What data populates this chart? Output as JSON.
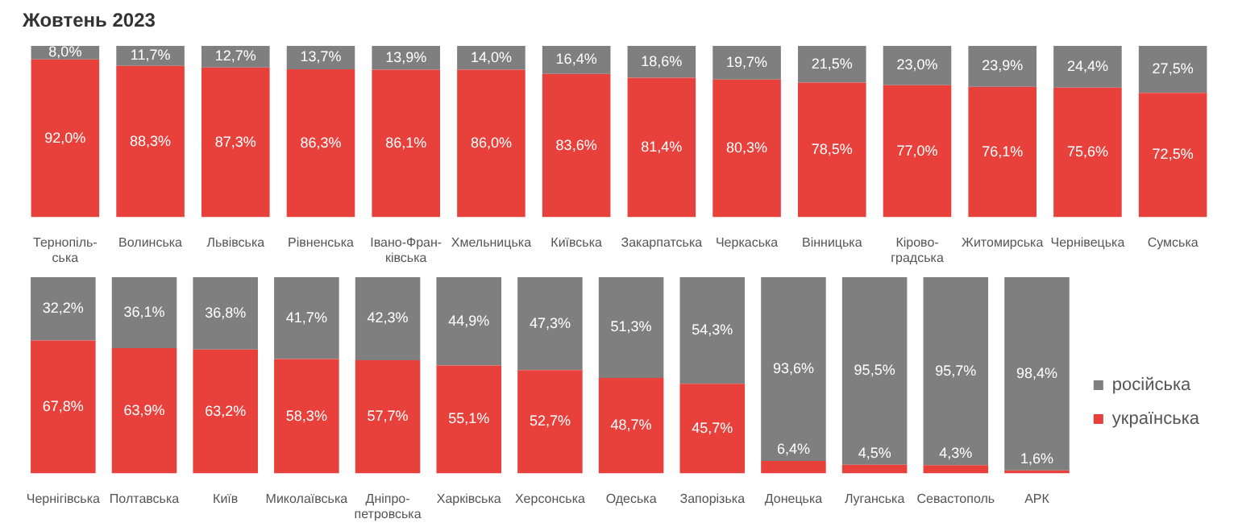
{
  "chart_data": [
    {
      "type": "bar",
      "stacked": true,
      "title": "Жовтень 2023",
      "grid": false,
      "legend": false,
      "categories": [
        "Тернопіль-\nська",
        "Волинська",
        "Львівська",
        "Рівненська",
        "Івано-Фран-\nківська",
        "Хмельницька",
        "Київська",
        "Закарпатська",
        "Черкаська",
        "Вінницька",
        "Кірово-\nградська",
        "Житомирська",
        "Чернівецька",
        "Сумська"
      ],
      "series": [
        {
          "color": "#e8413c",
          "values": [
            92.0,
            88.3,
            87.3,
            86.3,
            86.1,
            86.0,
            83.6,
            81.4,
            80.3,
            78.5,
            77.0,
            76.1,
            75.6,
            72.5
          ],
          "value_labels": [
            "92,0%",
            "88,3%",
            "87,3%",
            "86,3%",
            "86,1%",
            "86,0%",
            "83,6%",
            "81,4%",
            "80,3%",
            "78,5%",
            "77,0%",
            "76,1%",
            "75,6%",
            "72,5%"
          ]
        },
        {
          "color": "#7f7f7f",
          "values": [
            8.0,
            11.7,
            12.7,
            13.7,
            13.9,
            14.0,
            16.4,
            18.6,
            19.7,
            21.5,
            23.0,
            23.9,
            24.4,
            27.5
          ],
          "value_labels": [
            "8,0%",
            "11,7%",
            "12,7%",
            "13,7%",
            "13,9%",
            "14,0%",
            "16,4%",
            "18,6%",
            "19,7%",
            "21,5%",
            "23,0%",
            "23,9%",
            "24,4%",
            "27,5%"
          ]
        }
      ]
    },
    {
      "type": "bar",
      "stacked": true,
      "grid": false,
      "legend": "right",
      "categories": [
        "Чернігівська",
        "Полтавська",
        "Київ",
        "Миколаївська",
        "Дніпро-\nпетровська",
        "Харківська",
        "Херсонська",
        "Одеська",
        "Запорізька",
        "Донецька",
        "Луганська",
        "Севастополь",
        "АРК"
      ],
      "series": [
        {
          "name": "українська",
          "color": "#e8413c",
          "values": [
            67.8,
            63.9,
            63.2,
            58.3,
            57.7,
            55.1,
            52.7,
            48.7,
            45.7,
            6.4,
            4.5,
            4.3,
            1.6
          ],
          "value_labels": [
            "67,8%",
            "63,9%",
            "63,2%",
            "58,3%",
            "57,7%",
            "55,1%",
            "52,7%",
            "48,7%",
            "45,7%",
            "6,4%",
            "4,5%",
            "4,3%",
            "1,6%"
          ]
        },
        {
          "name": "російська",
          "color": "#7f7f7f",
          "values": [
            32.2,
            36.1,
            36.8,
            41.7,
            42.3,
            44.9,
            47.3,
            51.3,
            54.3,
            93.6,
            95.5,
            95.7,
            98.4
          ],
          "value_labels": [
            "32,2%",
            "36,1%",
            "36,8%",
            "41,7%",
            "42,3%",
            "44,9%",
            "47,3%",
            "51,3%",
            "54,3%",
            "93,6%",
            "95,5%",
            "95,7%",
            "98,4%"
          ]
        }
      ]
    }
  ]
}
